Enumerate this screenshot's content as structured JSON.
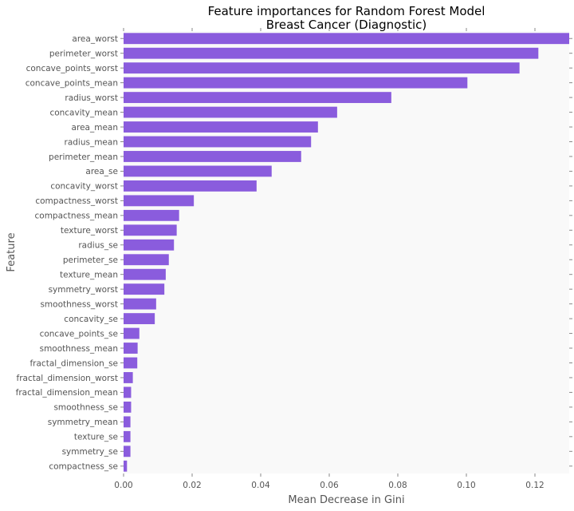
{
  "chart_data": {
    "type": "bar",
    "orientation": "horizontal",
    "title": "Feature importances for Random Forest Model",
    "subtitle": "Breast Cancer (Diagnostic)",
    "xlabel": "Mean Decrease in Gini",
    "ylabel": "Feature",
    "xlim": [
      0,
      0.13
    ],
    "xticks": [
      0.0,
      0.02,
      0.04,
      0.06,
      0.08,
      0.1,
      0.12
    ],
    "xtick_labels": [
      "0.00",
      "0.02",
      "0.04",
      "0.06",
      "0.08",
      "0.10",
      "0.12"
    ],
    "grid": false,
    "bar_color": "#8a5cdd",
    "plot_background": "#f9f9f9",
    "categories": [
      "area_worst",
      "perimeter_worst",
      "concave_points_worst",
      "concave_points_mean",
      "radius_worst",
      "concavity_mean",
      "area_mean",
      "radius_mean",
      "perimeter_mean",
      "area_se",
      "concavity_worst",
      "compactness_worst",
      "compactness_mean",
      "texture_worst",
      "radius_se",
      "perimeter_se",
      "texture_mean",
      "symmetry_worst",
      "smoothness_worst",
      "concavity_se",
      "concave_points_se",
      "smoothness_mean",
      "fractal_dimension_se",
      "fractal_dimension_worst",
      "fractal_dimension_mean",
      "smoothness_se",
      "symmetry_mean",
      "texture_se",
      "symmetry_se",
      "compactness_se"
    ],
    "values": [
      0.13,
      0.121,
      0.1155,
      0.1003,
      0.0781,
      0.0623,
      0.0567,
      0.0547,
      0.0518,
      0.0432,
      0.0388,
      0.0205,
      0.0162,
      0.0155,
      0.0147,
      0.0132,
      0.0123,
      0.0119,
      0.0095,
      0.0091,
      0.0046,
      0.0041,
      0.004,
      0.0027,
      0.0022,
      0.0022,
      0.002,
      0.002,
      0.002,
      0.001
    ]
  }
}
